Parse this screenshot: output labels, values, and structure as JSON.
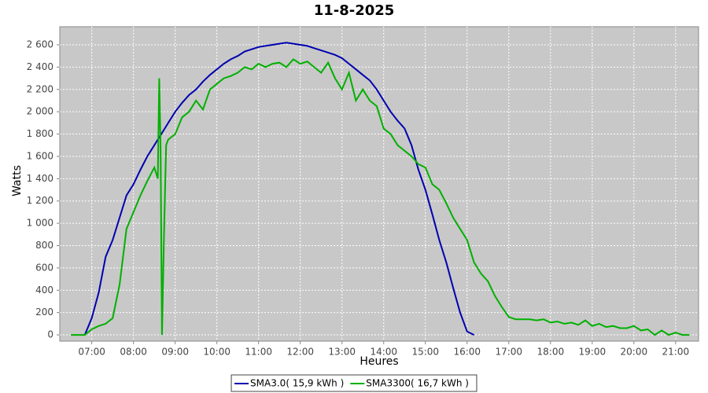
{
  "chart_data": {
    "type": "line",
    "title": "11-8-2025",
    "x_label": "Heures",
    "y_label": "Watts",
    "xlim": [
      "06:14",
      "21:33"
    ],
    "ylim": [
      -56,
      2762
    ],
    "xticks": [
      "07:00",
      "08:00",
      "09:00",
      "10:00",
      "11:00",
      "12:00",
      "13:00",
      "14:00",
      "15:00",
      "16:00",
      "17:00",
      "18:00",
      "19:00",
      "20:00",
      "21:00"
    ],
    "yticks": [
      0,
      {
        "value": 200,
        "label": "200"
      },
      {
        "value": 400,
        "label": "400"
      },
      {
        "value": 600,
        "label": "600"
      },
      {
        "value": 800,
        "label": "800"
      },
      {
        "value": 1000,
        "label": "1 000"
      },
      {
        "value": 1200,
        "label": "1 200"
      },
      {
        "value": 1400,
        "label": "1 400"
      },
      {
        "value": 1600,
        "label": "1 600"
      },
      {
        "value": 1800,
        "label": "1 800"
      },
      {
        "value": 2000,
        "label": "2 000"
      },
      {
        "value": 2200,
        "label": "2 200"
      },
      {
        "value": 2400,
        "label": "2 400"
      },
      {
        "value": 2600,
        "label": "2 600"
      }
    ],
    "grid": true,
    "background": "#c8c8c8",
    "legend": "bottom",
    "series": [
      {
        "name": "SMA3.0( 15,9 kWh )",
        "color": "#0000b0",
        "x": [
          "06:50",
          "07:00",
          "07:10",
          "07:20",
          "07:30",
          "07:40",
          "07:50",
          "08:00",
          "08:10",
          "08:20",
          "08:30",
          "08:40",
          "08:50",
          "09:00",
          "09:10",
          "09:20",
          "09:30",
          "09:40",
          "09:50",
          "10:00",
          "10:10",
          "10:20",
          "10:30",
          "10:40",
          "10:50",
          "11:00",
          "11:10",
          "11:20",
          "11:30",
          "11:40",
          "11:50",
          "12:00",
          "12:10",
          "12:20",
          "12:30",
          "12:40",
          "12:50",
          "13:00",
          "13:10",
          "13:20",
          "13:30",
          "13:40",
          "13:50",
          "14:00",
          "14:10",
          "14:20",
          "14:30",
          "14:40",
          "14:50",
          "15:00",
          "15:10",
          "15:20",
          "15:30",
          "15:40",
          "15:50",
          "16:00",
          "16:10"
        ],
        "values": [
          0,
          150,
          380,
          700,
          850,
          1050,
          1250,
          1350,
          1480,
          1600,
          1700,
          1800,
          1900,
          2000,
          2080,
          2150,
          2200,
          2270,
          2330,
          2380,
          2430,
          2470,
          2500,
          2540,
          2560,
          2580,
          2590,
          2600,
          2610,
          2620,
          2610,
          2600,
          2590,
          2570,
          2550,
          2530,
          2510,
          2480,
          2430,
          2380,
          2330,
          2280,
          2200,
          2100,
          2000,
          1920,
          1850,
          1700,
          1480,
          1300,
          1080,
          850,
          650,
          420,
          200,
          30,
          0
        ]
      },
      {
        "name": "SMA3300( 16,7 kWh )",
        "color": "#00b000",
        "x": [
          "06:30",
          "06:50",
          "07:00",
          "07:10",
          "07:20",
          "07:30",
          "07:40",
          "07:50",
          "08:00",
          "08:10",
          "08:20",
          "08:30",
          "08:35",
          "08:37",
          "08:39",
          "08:41",
          "08:44",
          "08:47",
          "08:50",
          "09:00",
          "09:10",
          "09:20",
          "09:30",
          "09:40",
          "09:50",
          "10:00",
          "10:10",
          "10:20",
          "10:30",
          "10:40",
          "10:50",
          "11:00",
          "11:10",
          "11:20",
          "11:30",
          "11:40",
          "11:50",
          "12:00",
          "12:10",
          "12:20",
          "12:30",
          "12:40",
          "12:50",
          "13:00",
          "13:10",
          "13:20",
          "13:30",
          "13:40",
          "13:50",
          "14:00",
          "14:10",
          "14:20",
          "14:30",
          "14:40",
          "14:50",
          "15:00",
          "15:10",
          "15:20",
          "15:30",
          "15:40",
          "15:50",
          "16:00",
          "16:10",
          "16:20",
          "16:30",
          "16:40",
          "16:50",
          "17:00",
          "17:10",
          "17:20",
          "17:30",
          "17:40",
          "17:50",
          "18:00",
          "18:10",
          "18:20",
          "18:30",
          "18:40",
          "18:50",
          "19:00",
          "19:10",
          "19:20",
          "19:30",
          "19:40",
          "19:50",
          "20:00",
          "20:10",
          "20:20",
          "20:30",
          "20:40",
          "20:50",
          "21:00",
          "21:10",
          "21:20"
        ],
        "values": [
          0,
          0,
          50,
          80,
          100,
          150,
          450,
          950,
          1100,
          1250,
          1380,
          1500,
          1400,
          2300,
          1700,
          0,
          900,
          1700,
          1750,
          1800,
          1950,
          2000,
          2100,
          2020,
          2200,
          2250,
          2300,
          2320,
          2350,
          2400,
          2380,
          2430,
          2400,
          2430,
          2440,
          2400,
          2470,
          2430,
          2450,
          2400,
          2350,
          2440,
          2300,
          2200,
          2350,
          2100,
          2200,
          2100,
          2050,
          1850,
          1800,
          1700,
          1650,
          1600,
          1530,
          1500,
          1350,
          1300,
          1180,
          1050,
          950,
          850,
          650,
          550,
          480,
          350,
          250,
          160,
          140,
          140,
          140,
          130,
          140,
          110,
          120,
          100,
          110,
          90,
          130,
          80,
          100,
          70,
          80,
          60,
          60,
          80,
          40,
          50,
          0,
          40,
          0,
          20,
          0,
          0
        ]
      }
    ]
  }
}
